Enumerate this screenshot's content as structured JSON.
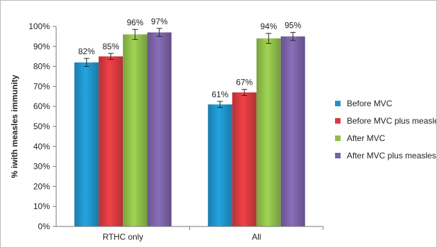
{
  "chart_data": {
    "type": "bar",
    "ylabel": "% iwith measles immunity",
    "xlabel": "",
    "title": "",
    "ylim": [
      0,
      100
    ],
    "y_tick_step": 10,
    "y_tick_format": "percent",
    "grid": false,
    "legend_position": "right",
    "categories": [
      "RTHC only",
      "All"
    ],
    "series": [
      {
        "name": "Before MVC",
        "color": "#1f93c9",
        "values": [
          82,
          61
        ],
        "error": [
          2,
          1.5
        ],
        "labels": [
          "82%",
          "61%"
        ]
      },
      {
        "name": "Before MVC plus measles",
        "color": "#d73a3f",
        "values": [
          85,
          67
        ],
        "error": [
          1.5,
          1.5
        ],
        "labels": [
          "85%",
          "67%"
        ]
      },
      {
        "name": "After MVC",
        "color": "#8fbe4a",
        "values": [
          96,
          94
        ],
        "error": [
          2.5,
          2.5
        ],
        "labels": [
          "96%",
          "94%"
        ]
      },
      {
        "name": "After MVC plus measles",
        "color": "#7a62a6",
        "values": [
          97,
          95
        ],
        "error": [
          2,
          2
        ],
        "labels": [
          "97%",
          "95%"
        ]
      }
    ]
  }
}
